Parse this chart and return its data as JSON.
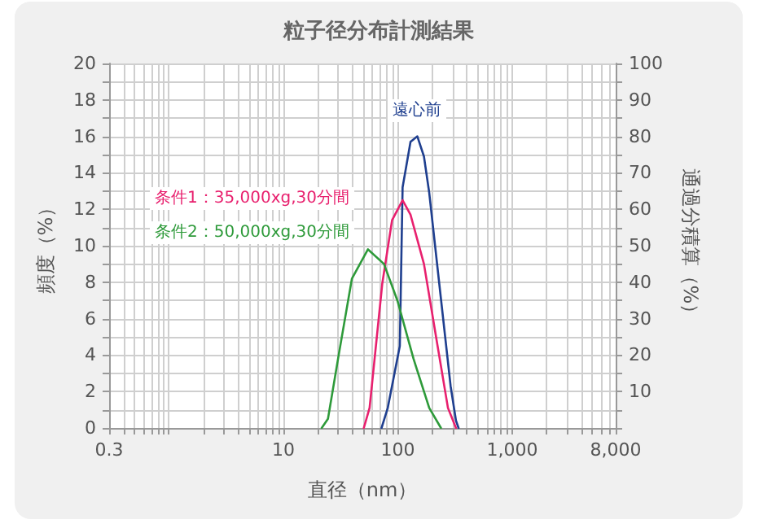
{
  "chart_data": {
    "type": "line",
    "title": "粒子径分布計測結果",
    "xlabel": "直径（nm）",
    "ylabel": "頻度（%）",
    "y2label": "通過分積算（%）",
    "log": "x",
    "grid": true,
    "legend": false,
    "marker": "none",
    "line_style": "solid",
    "xlim": [
      0.3,
      8000
    ],
    "xticks": [
      0.3,
      10,
      100,
      {
        "value": 1000,
        "label": "1,000"
      },
      {
        "value": 8000,
        "label": "8,000"
      }
    ],
    "ylim": [
      0,
      20
    ],
    "yticks": [
      0,
      2,
      4,
      6,
      8,
      10,
      12,
      14,
      16,
      18,
      20
    ],
    "y2lim": [
      0,
      100
    ],
    "y2ticks": [
      {
        "value": 0,
        "label": null
      },
      10,
      20,
      30,
      40,
      50,
      60,
      70,
      80,
      90,
      100
    ],
    "series": [
      {
        "name": "遠心前",
        "color": "#1f3f8f",
        "x": [
          72,
          81.6,
          104,
          110,
          129,
          148,
          169,
          188,
          233,
          289,
          322,
          339
        ],
        "values": [
          0,
          1.1,
          4.5,
          13.2,
          15.7,
          16.0,
          14.9,
          12.9,
          7.6,
          2.3,
          0.4,
          0
        ]
      },
      {
        "name": "条件1：35,000xg,30分間",
        "color": "#e8206e",
        "x": [
          50.4,
          56.6,
          73,
          89,
          110,
          129,
          169,
          221,
          274,
          322
        ],
        "values": [
          0,
          1.1,
          7.9,
          11.4,
          12.5,
          11.7,
          9.0,
          4.6,
          1.1,
          0
        ]
      },
      {
        "name": "条件2：50,000xg,30分間",
        "color": "#2e9a3a",
        "x": [
          21.6,
          24.5,
          30.4,
          39.7,
          54.8,
          75.6,
          99,
          137,
          188,
          238
        ],
        "values": [
          0,
          0.5,
          4.0,
          8.2,
          9.8,
          9.0,
          7.0,
          3.8,
          1.1,
          0
        ]
      }
    ]
  }
}
